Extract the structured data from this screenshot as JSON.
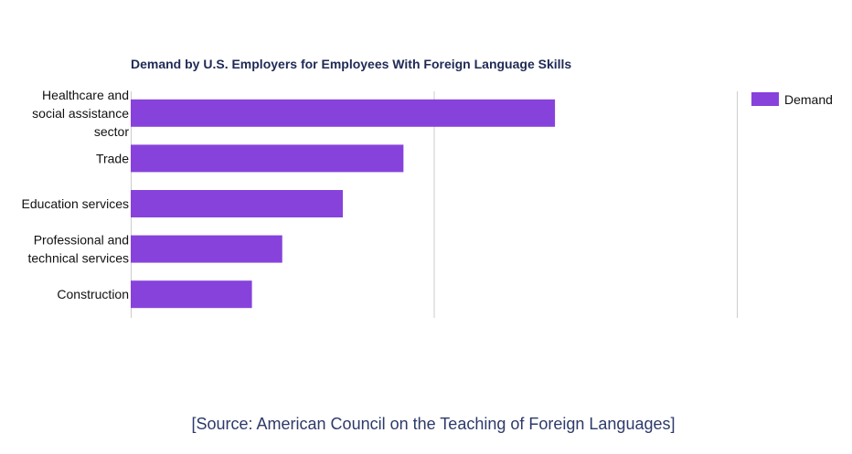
{
  "chart_data": {
    "type": "bar",
    "orientation": "horizontal",
    "title": "Demand by U.S. Employers for Employees With Foreign Language Skills",
    "categories": [
      [
        "Healthcare and",
        "social assistance",
        "sector"
      ],
      [
        "Trade"
      ],
      [
        "Education services"
      ],
      [
        "Professional and",
        "technical services"
      ],
      [
        "Construction"
      ]
    ],
    "series": [
      {
        "name": "Demand",
        "values": [
          70,
          45,
          35,
          25,
          20
        ],
        "color": "#8742dc"
      }
    ],
    "xlim": [
      0,
      100
    ],
    "grid": true,
    "x_tick_labels_visible": false,
    "legend": {
      "position": "top-right",
      "entries": [
        "Demand"
      ]
    }
  },
  "source": "[Source: American Council on the Teaching of Foreign Languages]"
}
